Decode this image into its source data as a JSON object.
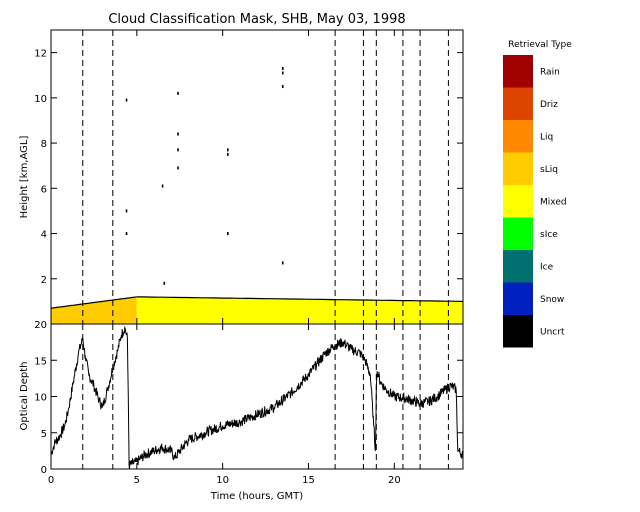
{
  "chart_data": [
    {
      "type": "heatmap",
      "title": "Cloud Classification Mask, SHB, May 03, 1998",
      "ylabel": "Height [km,AGL]",
      "xlim": [
        0,
        24
      ],
      "ylim": [
        0,
        13
      ],
      "x_ticks": [
        "0",
        "5",
        "10",
        "15",
        "20"
      ],
      "y_ticks": [
        "2",
        "4",
        "6",
        "8",
        "10",
        "12"
      ],
      "dashed_times": [
        1.85,
        3.6,
        16.55,
        18.2,
        18.95,
        20.5,
        21.5,
        23.15
      ],
      "legend_title": "Retrieval Type",
      "legend": [
        {
          "label": "Rain",
          "color": "#a00000"
        },
        {
          "label": "Driz",
          "color": "#dd4400"
        },
        {
          "label": "Liq",
          "color": "#ff8800"
        },
        {
          "label": "sLiq",
          "color": "#ffcc00"
        },
        {
          "label": "Mixed",
          "color": "#ffff00"
        },
        {
          "label": "sIce",
          "color": "#00ff00"
        },
        {
          "label": "Ice",
          "color": "#007070"
        },
        {
          "label": "Snow",
          "color": "#0020c0"
        },
        {
          "label": "Uncrt",
          "color": "#000000"
        }
      ],
      "layers": [
        {
          "type": "sLiq",
          "x": [
            0,
            5
          ],
          "bottom": 0,
          "top_start": 0.7,
          "top_end": 1.2
        },
        {
          "type": "Mixed",
          "x": [
            5,
            24
          ],
          "bottom": 0,
          "top_start": 1.2,
          "top_end": 1.0
        }
      ],
      "isolated_echoes": [
        {
          "x": 4.4,
          "y": 9.9
        },
        {
          "x": 4.4,
          "y": 5.0
        },
        {
          "x": 4.4,
          "y": 4.0
        },
        {
          "x": 6.5,
          "y": 6.1
        },
        {
          "x": 6.6,
          "y": 1.8
        },
        {
          "x": 7.4,
          "y": 10.2
        },
        {
          "x": 7.4,
          "y": 8.4
        },
        {
          "x": 7.4,
          "y": 7.7
        },
        {
          "x": 7.4,
          "y": 6.9
        },
        {
          "x": 10.3,
          "y": 7.7
        },
        {
          "x": 10.3,
          "y": 7.5
        },
        {
          "x": 10.3,
          "y": 4.0
        },
        {
          "x": 13.5,
          "y": 11.3
        },
        {
          "x": 13.5,
          "y": 11.1
        },
        {
          "x": 13.5,
          "y": 10.5
        },
        {
          "x": 13.5,
          "y": 2.7
        }
      ]
    },
    {
      "type": "line",
      "xlabel": "Time (hours, GMT)",
      "ylabel": "Optical Depth",
      "xlim": [
        0,
        24
      ],
      "ylim": [
        0,
        20
      ],
      "x_ticks": [
        "0",
        "5",
        "10",
        "15",
        "20"
      ],
      "y_ticks": [
        "0",
        "5",
        "10",
        "15",
        "20"
      ],
      "x": [
        0,
        0.2,
        0.5,
        0.8,
        1.0,
        1.3,
        1.6,
        1.85,
        2.0,
        2.2,
        2.5,
        2.8,
        3.0,
        3.3,
        3.6,
        3.9,
        4.1,
        4.3,
        4.45,
        4.5,
        4.55,
        5.0,
        5.5,
        6.0,
        6.5,
        7.0,
        7.2,
        7.5,
        8.0,
        9.0,
        10.0,
        11.0,
        12.0,
        13.0,
        14.0,
        15.0,
        15.5,
        16.0,
        16.5,
        17.0,
        17.5,
        18.0,
        18.3,
        18.6,
        18.8,
        18.9,
        18.95,
        19.0,
        19.2,
        19.5,
        20.0,
        20.5,
        21.0,
        21.5,
        22.0,
        22.5,
        23.0,
        23.3,
        23.6,
        23.7,
        24.0
      ],
      "y": [
        2.0,
        3.5,
        4.5,
        6.0,
        8.0,
        12.0,
        16.0,
        18.0,
        15.5,
        13.0,
        11.5,
        9.5,
        8.5,
        11.0,
        14.0,
        16.5,
        18.5,
        19.5,
        18.0,
        10.0,
        0.5,
        1.0,
        2.0,
        2.5,
        3.0,
        2.5,
        1.5,
        2.5,
        4.0,
        5.0,
        6.0,
        6.5,
        7.5,
        8.5,
        10.5,
        13.0,
        14.5,
        16.0,
        17.0,
        17.5,
        16.5,
        16.0,
        15.0,
        13.0,
        6.0,
        2.5,
        11.0,
        13.5,
        12.0,
        11.0,
        10.0,
        9.8,
        9.5,
        9.0,
        9.3,
        10.0,
        11.0,
        11.5,
        11.0,
        2.5,
        2.0
      ]
    }
  ]
}
